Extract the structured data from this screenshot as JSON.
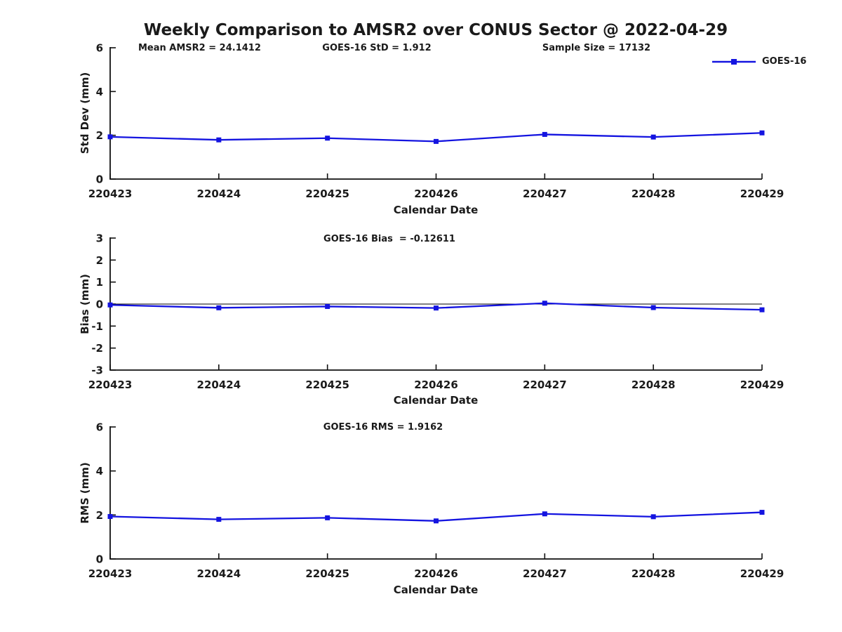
{
  "page_title": "Weekly Comparison to AMSR2 over CONUS Sector @ 2022-04-29",
  "colors": {
    "line": "#1414e0",
    "text": "#1a1a1a",
    "axis": "#111111",
    "zero_line": "#000000"
  },
  "legend": {
    "label": "GOES-16"
  },
  "chart_data": [
    {
      "type": "line",
      "name": "std-dev-panel",
      "annotations": [
        "Mean AMSR2 = 24.1412",
        "GOES-16 StD = 1.912",
        "Sample Size = 17132"
      ],
      "categories": [
        "220423",
        "220424",
        "220425",
        "220426",
        "220427",
        "220428",
        "220429"
      ],
      "series": [
        {
          "name": "GOES-16",
          "values": [
            1.93,
            1.79,
            1.87,
            1.72,
            2.04,
            1.92,
            2.11
          ]
        }
      ],
      "xlabel": "Calendar Date",
      "ylabel": "Std Dev (mm)",
      "ylim": [
        0,
        6
      ],
      "yticks": [
        0,
        2,
        4,
        6
      ],
      "zero_line": false,
      "legend_position": "top-right"
    },
    {
      "type": "line",
      "name": "bias-panel",
      "annotations": [
        "GOES-16 Bias  = -0.12611"
      ],
      "categories": [
        "220423",
        "220424",
        "220425",
        "220426",
        "220427",
        "220428",
        "220429"
      ],
      "series": [
        {
          "name": "GOES-16",
          "values": [
            -0.04,
            -0.17,
            -0.11,
            -0.18,
            0.04,
            -0.16,
            -0.26
          ]
        }
      ],
      "xlabel": "Calendar Date",
      "ylabel": "Bias (mm)",
      "ylim": [
        -3,
        3
      ],
      "yticks": [
        3,
        2,
        1,
        0,
        -1,
        -2,
        -3
      ],
      "zero_line": true
    },
    {
      "type": "line",
      "name": "rms-panel",
      "annotations": [
        "GOES-16 RMS = 1.9162"
      ],
      "categories": [
        "220423",
        "220424",
        "220425",
        "220426",
        "220427",
        "220428",
        "220429"
      ],
      "series": [
        {
          "name": "GOES-16",
          "values": [
            1.93,
            1.8,
            1.87,
            1.73,
            2.05,
            1.92,
            2.12
          ]
        }
      ],
      "xlabel": "Calendar Date",
      "ylabel": "RMS (mm)",
      "ylim": [
        0,
        6
      ],
      "yticks": [
        0,
        2,
        4,
        6
      ],
      "zero_line": false
    }
  ]
}
